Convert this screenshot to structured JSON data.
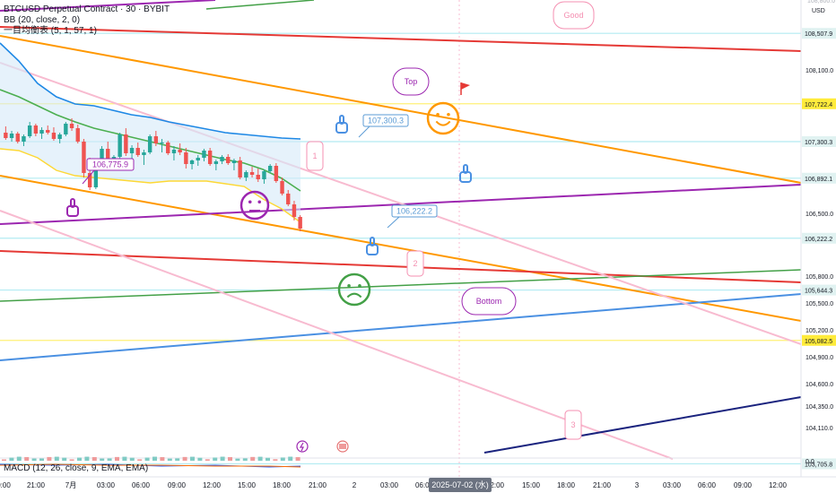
{
  "chart_data": {
    "type": "candlestick",
    "symbol_line": "BTCUSD Perpetual Contract · 30 · BYBIT",
    "indicators": [
      "BB (20, close, 2, 0)",
      "一目均衡表 (5, 1, 57, 1)"
    ],
    "macd_label": "MACD (12, 26, close, 9, EMA, EMA)",
    "currency": "USD",
    "y_range": [
      103500,
      108800
    ],
    "y_ticks": [
      108100,
      107300,
      106500,
      105800,
      105500,
      105200,
      104900,
      104600,
      104350,
      104110
    ],
    "y_tick_labels": [
      "108,100.0",
      "107,300.0",
      "106,500.0",
      "105,800.0",
      "105,500.0",
      "105,200.0",
      "104,900.0",
      "104,600.0",
      "104,350.0",
      "104,110.0"
    ],
    "x_labels": [
      "0:00",
      "21:00",
      "7月",
      "03:00",
      "06:00",
      "09:00",
      "12:00",
      "15:00",
      "18:00",
      "21:00",
      "2",
      "03:00",
      "06:00",
      "09:00",
      "12:00",
      "15:00",
      "18:00",
      "21:00",
      "3",
      "03:00",
      "06:00",
      "09:00",
      "12:00"
    ],
    "date_marker": "2025-07-02 (水)",
    "candles": [
      [
        107400,
        107470,
        107320,
        107340
      ],
      [
        107340,
        107420,
        107300,
        107390
      ],
      [
        107390,
        107410,
        107280,
        107300
      ],
      [
        107300,
        107380,
        107250,
        107360
      ],
      [
        107360,
        107520,
        107340,
        107480
      ],
      [
        107480,
        107500,
        107360,
        107390
      ],
      [
        107390,
        107460,
        107330,
        107430
      ],
      [
        107430,
        107480,
        107380,
        107400
      ],
      [
        107400,
        107460,
        107310,
        107330
      ],
      [
        107330,
        107400,
        107280,
        107380
      ],
      [
        107380,
        107520,
        107360,
        107500
      ],
      [
        107500,
        107560,
        107420,
        107450
      ],
      [
        107450,
        107490,
        107280,
        107300
      ],
      [
        107300,
        107330,
        106900,
        106950
      ],
      [
        106950,
        107120,
        106760,
        106790
      ],
      [
        106790,
        107050,
        106770,
        107000
      ],
      [
        107000,
        107250,
        106980,
        107220
      ],
      [
        107220,
        107300,
        106980,
        107020
      ],
      [
        107020,
        107150,
        106990,
        107130
      ],
      [
        107130,
        107400,
        107100,
        107380
      ],
      [
        107380,
        107450,
        107140,
        107170
      ],
      [
        107170,
        107260,
        107090,
        107230
      ],
      [
        107230,
        107290,
        107130,
        107150
      ],
      [
        107150,
        107210,
        107040,
        107180
      ],
      [
        107180,
        107380,
        107160,
        107360
      ],
      [
        107360,
        107420,
        107250,
        107280
      ],
      [
        107280,
        107330,
        107180,
        107290
      ],
      [
        107290,
        107310,
        107150,
        107170
      ],
      [
        107170,
        107250,
        107090,
        107210
      ],
      [
        107210,
        107280,
        107150,
        107180
      ],
      [
        107180,
        107230,
        107000,
        107050
      ],
      [
        107050,
        107100,
        106990,
        107090
      ],
      [
        107090,
        107150,
        107030,
        107120
      ],
      [
        107120,
        107220,
        107080,
        107200
      ],
      [
        107200,
        107230,
        107030,
        107050
      ],
      [
        107050,
        107100,
        106980,
        107080
      ],
      [
        107080,
        107150,
        107050,
        107130
      ],
      [
        107130,
        107160,
        107040,
        107060
      ],
      [
        107060,
        107110,
        106980,
        107090
      ],
      [
        107090,
        107130,
        106880,
        106900
      ],
      [
        106900,
        106980,
        106860,
        106960
      ],
      [
        106960,
        107020,
        106900,
        106930
      ],
      [
        106930,
        107000,
        106850,
        106880
      ],
      [
        106880,
        106990,
        106830,
        106970
      ],
      [
        106970,
        107050,
        106950,
        107030
      ],
      [
        107030,
        107060,
        106840,
        106860
      ],
      [
        106860,
        106900,
        106700,
        106720
      ],
      [
        106720,
        106760,
        106580,
        106600
      ],
      [
        106600,
        106640,
        106420,
        106460
      ],
      [
        106460,
        106480,
        106300,
        106330
      ]
    ],
    "bb_upper": [
      108400,
      108200,
      107950,
      107800,
      107720,
      107700,
      107650,
      107600,
      107570,
      107520,
      107480,
      107440,
      107400,
      107380,
      107360,
      107340,
      107330
    ],
    "bb_middle": [
      107880,
      107800,
      107700,
      107600,
      107520,
      107450,
      107400,
      107350,
      107300,
      107250,
      107200,
      107150,
      107100,
      107060,
      106990,
      106890,
      106750
    ],
    "bb_lower": [
      107220,
      107200,
      107120,
      106980,
      106920,
      106900,
      106880,
      106860,
      106840,
      106860,
      106860,
      106860,
      106830,
      106800,
      106660,
      106550,
      106400
    ],
    "price_labels": [
      {
        "value": 108507.9,
        "text": "108,507.9",
        "color": "#e0f2f1",
        "text_color": "#131722"
      },
      {
        "value": 107722.4,
        "text": "107,722.4",
        "color": "#ffeb3b",
        "text_color": "#131722"
      },
      {
        "value": 107300.3,
        "text": "107,300.3",
        "color": "#e0f2f1",
        "text_color": "#131722"
      },
      {
        "value": 106892.1,
        "text": "106,892.1",
        "color": "#e0f2f1",
        "text_color": "#131722"
      },
      {
        "value": 106222.2,
        "text": "106,222.2",
        "color": "#e0f2f1",
        "text_color": "#131722"
      },
      {
        "value": 105644.3,
        "text": "105,644.3",
        "color": "#e0f2f1",
        "text_color": "#131722"
      },
      {
        "value": 105082.5,
        "text": "105,082.5",
        "color": "#ffeb3b",
        "text_color": "#131722"
      },
      {
        "value": 103705.8,
        "text": "103,705.8",
        "color": "#e0f2f1",
        "text_color": "#131722"
      }
    ],
    "callouts": [
      {
        "text": "106,775.9",
        "color": "#9c27b0"
      },
      {
        "text": "107,300.3",
        "color": "#5b9bd5"
      },
      {
        "text": "106,222.2",
        "color": "#5b9bd5"
      },
      {
        "text": "Top",
        "color": "#9c27b0"
      },
      {
        "text": "Bottom",
        "color": "#9c27b0"
      },
      {
        "text": "Good",
        "color": "#f48fb1"
      },
      {
        "text": "1",
        "color": "#f48fb1"
      },
      {
        "text": "2",
        "color": "#f48fb1"
      },
      {
        "text": "3",
        "color": "#f48fb1"
      }
    ],
    "macd_axis_label": "0.0"
  }
}
